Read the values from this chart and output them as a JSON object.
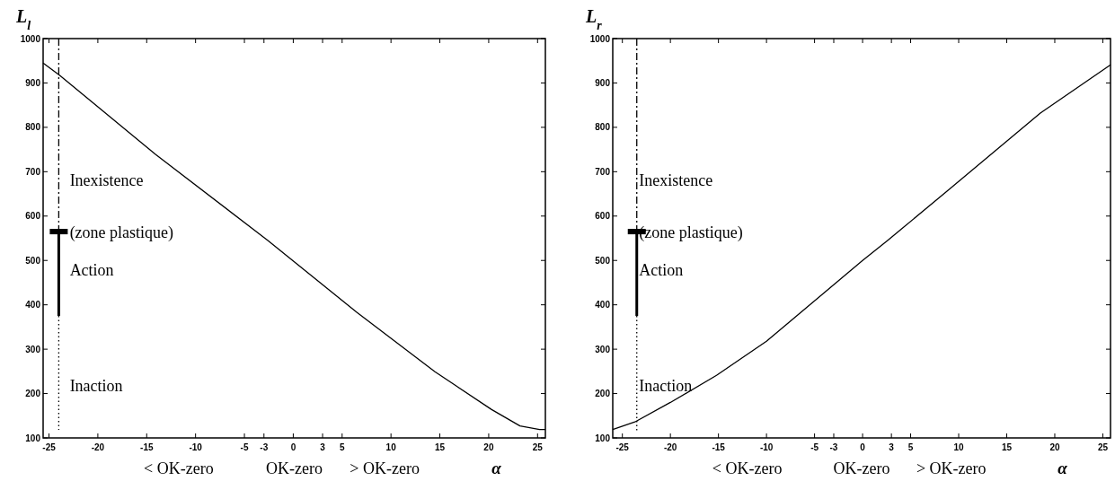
{
  "chart_data": [
    {
      "type": "line",
      "ylabel": "L$_{l}$",
      "xlabel": "α",
      "xlim": [
        -25.6,
        25.8
      ],
      "ylim": [
        100,
        1000
      ],
      "xticks": [
        -25,
        -20,
        -15,
        -10,
        -5,
        -3,
        0,
        3,
        5,
        10,
        15,
        20,
        25
      ],
      "yticks": [
        100,
        200,
        300,
        400,
        500,
        600,
        700,
        800,
        900,
        1000
      ],
      "series": [
        {
          "color": "#000000",
          "line_style": "solid",
          "x": [
            -25.6,
            -23.9,
            -14.1,
            -2.6,
            6.5,
            14.5,
            20.3,
            23.2,
            25.2,
            25.8
          ],
          "values": [
            945,
            917,
            739,
            545,
            383,
            249,
            164,
            127,
            119,
            119
          ]
        },
        {
          "color": "#000000",
          "line_style": "dashdot",
          "x": [
            -24,
            -24
          ],
          "values": [
            1000,
            565
          ]
        },
        {
          "color": "#000000",
          "line_style": "solid",
          "x": [
            -24,
            -24
          ],
          "values": [
            565,
            375
          ]
        },
        {
          "color": "#000000",
          "line_style": "dotted",
          "x": [
            -24,
            -24
          ],
          "values": [
            375,
            118
          ]
        }
      ],
      "annotations": [
        "Inexistence",
        "(zone plastique)",
        "Action",
        "Inaction",
        "< OK-zero",
        "OK-zero",
        "> OK-zero"
      ]
    },
    {
      "type": "line",
      "ylabel": "L$_{r}$",
      "xlabel": "α",
      "xlim": [
        -26,
        25.8
      ],
      "ylim": [
        100,
        1000
      ],
      "xticks": [
        -25,
        -20,
        -15,
        -10,
        -5,
        -3,
        0,
        3,
        5,
        10,
        15,
        20,
        25
      ],
      "yticks": [
        100,
        200,
        300,
        400,
        500,
        600,
        700,
        800,
        900,
        1000
      ],
      "series": [
        {
          "color": "#000000",
          "line_style": "solid",
          "x": [
            -26,
            -23.7,
            -20,
            -15.2,
            -10,
            0,
            2.6,
            8.9,
            18.5,
            25.8
          ],
          "values": [
            119,
            136,
            180,
            241,
            318,
            500,
            545,
            658,
            832,
            941
          ]
        },
        {
          "color": "#000000",
          "line_style": "dashdot",
          "x": [
            -23.5,
            -23.5
          ],
          "values": [
            1000,
            565
          ]
        },
        {
          "color": "#000000",
          "line_style": "solid",
          "x": [
            -23.5,
            -23.5
          ],
          "values": [
            565,
            375
          ]
        },
        {
          "color": "#000000",
          "line_style": "dotted",
          "x": [
            -23.5,
            -23.5
          ],
          "values": [
            375,
            112
          ]
        }
      ],
      "annotations": [
        "Inexistence",
        "(zone plastique)",
        "Action",
        "Inaction",
        "< OK-zero",
        "OK-zero",
        "> OK-zero"
      ]
    }
  ]
}
